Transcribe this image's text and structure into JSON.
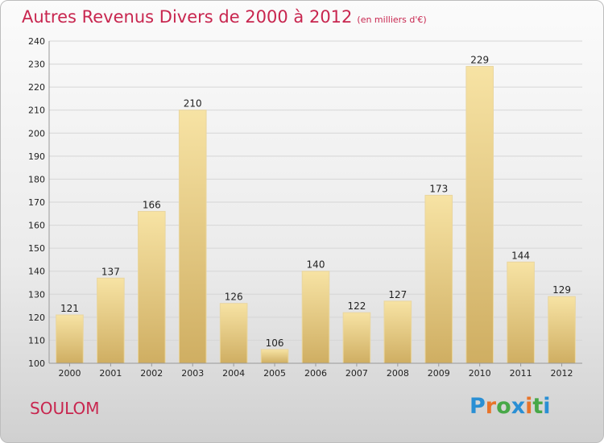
{
  "title": "Autres Revenus Divers de 2000 à 2012",
  "subtitle": "(en milliers d'€)",
  "commune": "SOULOM",
  "logo": {
    "text": "Proxiti",
    "letters": [
      "P",
      "r",
      "o",
      "x",
      "i",
      "t",
      "i"
    ],
    "colors": [
      "#2a8fd4",
      "#e8742a",
      "#48a848",
      "#2a8fd4",
      "#e8742a",
      "#48a848",
      "#2a8fd4"
    ]
  },
  "colors": {
    "title": "#c8264f",
    "bar_light": "#f7e3a4",
    "bar_dark": "#cfae62",
    "grid": "#d6d6d6",
    "axis_text": "#222222"
  },
  "chart_data": {
    "type": "bar",
    "categories": [
      "2000",
      "2001",
      "2002",
      "2003",
      "2004",
      "2005",
      "2006",
      "2007",
      "2008",
      "2009",
      "2010",
      "2011",
      "2012"
    ],
    "values": [
      121,
      137,
      166,
      210,
      126,
      106,
      140,
      122,
      127,
      173,
      229,
      144,
      129
    ],
    "ylim": [
      100,
      240
    ],
    "yticks": [
      100,
      110,
      120,
      130,
      140,
      150,
      160,
      170,
      180,
      190,
      200,
      210,
      220,
      230,
      240
    ],
    "grid": true
  }
}
